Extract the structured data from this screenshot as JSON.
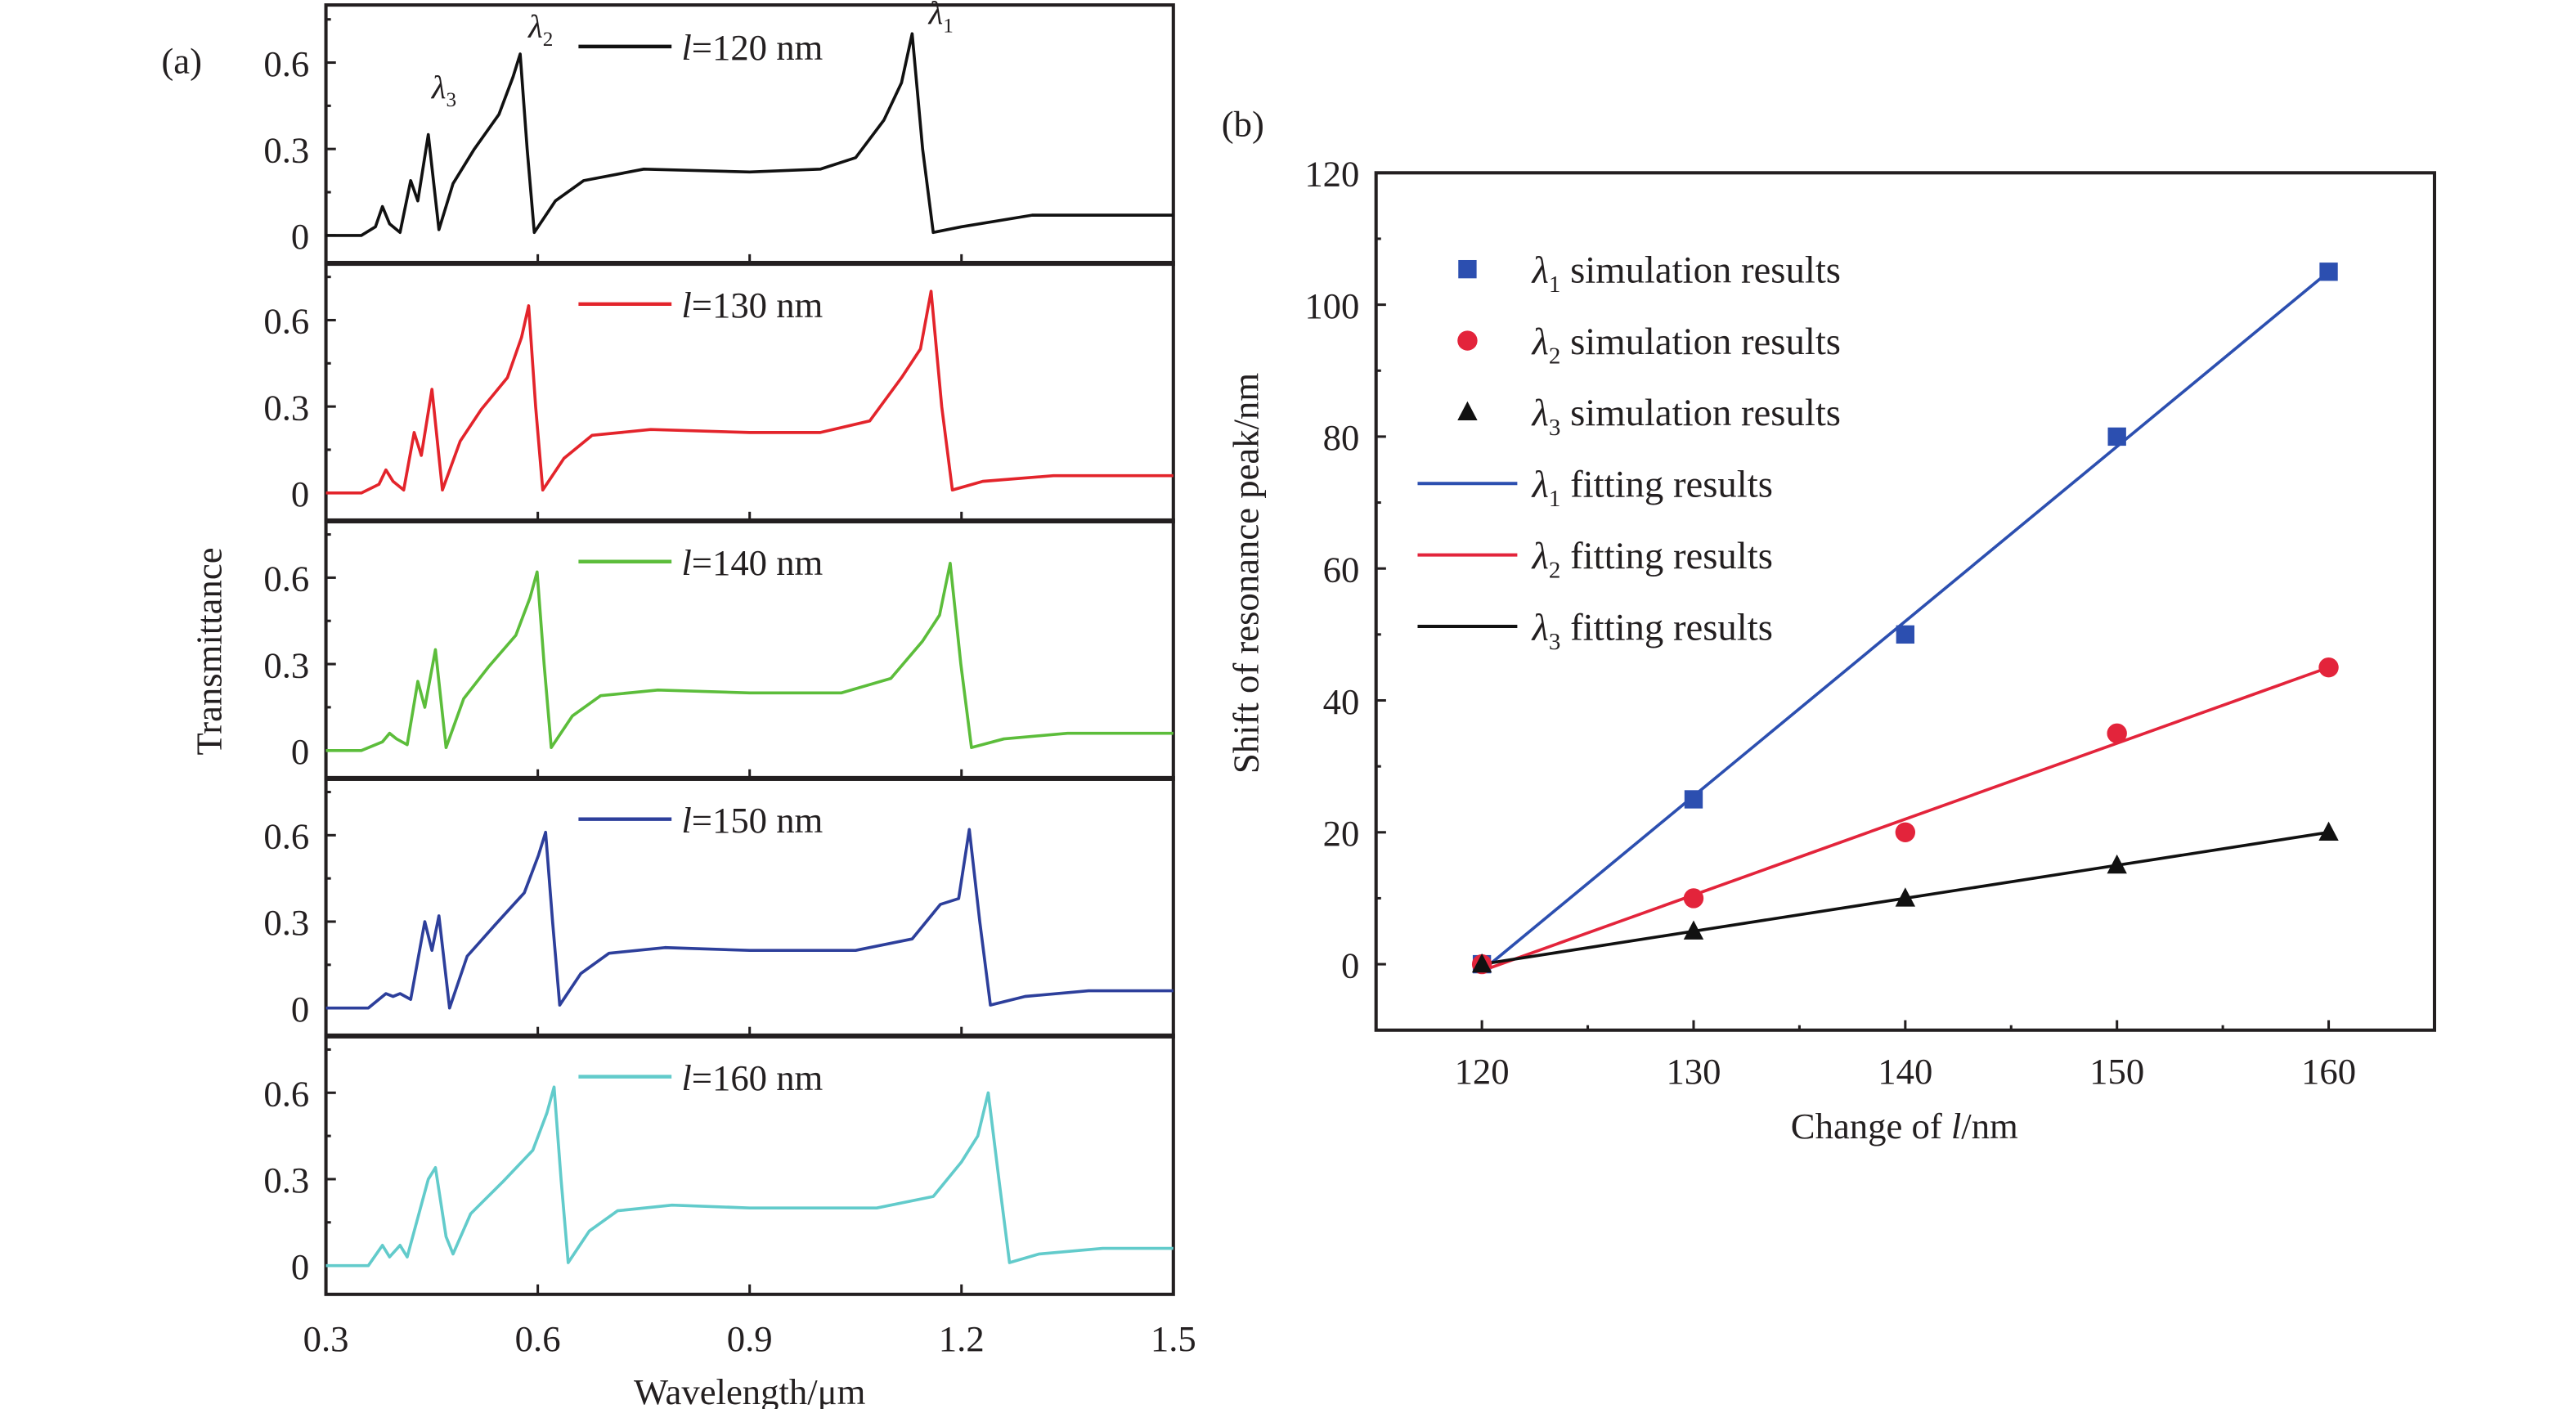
{
  "chart_data": [
    {
      "type": "line",
      "panel_label": "(a)",
      "xlabel": "Wavelength/μm",
      "ylabel": "Transmittance",
      "xlim": [
        0.3,
        1.5
      ],
      "ylim": [
        -0.1,
        0.8
      ],
      "x_ticks": [
        "0.3",
        "0.6",
        "0.9",
        "1.2",
        "1.5"
      ],
      "y_ticks": [
        "0",
        "0.3",
        "0.6"
      ],
      "grid": false,
      "legend_placement": "top-center",
      "annotations": [
        {
          "symbol": "λ",
          "subscript": "3",
          "at": [
            0.445,
            0.35
          ]
        },
        {
          "symbol": "λ",
          "subscript": "2",
          "at": [
            0.575,
            0.63
          ]
        },
        {
          "symbol": "λ",
          "subscript": "1",
          "at": [
            1.13,
            0.7
          ]
        }
      ],
      "series": [
        {
          "name": "l=120 nm",
          "color": "#111111",
          "points": [
            [
              0.3,
              0
            ],
            [
              0.35,
              0
            ],
            [
              0.37,
              0.03
            ],
            [
              0.38,
              0.1
            ],
            [
              0.39,
              0.04
            ],
            [
              0.405,
              0.01
            ],
            [
              0.42,
              0.19
            ],
            [
              0.43,
              0.12
            ],
            [
              0.445,
              0.35
            ],
            [
              0.46,
              0.02
            ],
            [
              0.48,
              0.18
            ],
            [
              0.51,
              0.3
            ],
            [
              0.545,
              0.42
            ],
            [
              0.565,
              0.55
            ],
            [
              0.575,
              0.63
            ],
            [
              0.585,
              0.3
            ],
            [
              0.595,
              0.01
            ],
            [
              0.625,
              0.12
            ],
            [
              0.665,
              0.19
            ],
            [
              0.75,
              0.23
            ],
            [
              0.9,
              0.22
            ],
            [
              1.0,
              0.23
            ],
            [
              1.05,
              0.27
            ],
            [
              1.09,
              0.4
            ],
            [
              1.115,
              0.53
            ],
            [
              1.13,
              0.7
            ],
            [
              1.145,
              0.3
            ],
            [
              1.16,
              0.01
            ],
            [
              1.2,
              0.03
            ],
            [
              1.3,
              0.07
            ],
            [
              1.5,
              0.07
            ]
          ]
        },
        {
          "name": "l=130 nm",
          "color": "#e3242b",
          "points": [
            [
              0.3,
              0
            ],
            [
              0.35,
              0
            ],
            [
              0.375,
              0.03
            ],
            [
              0.385,
              0.08
            ],
            [
              0.395,
              0.04
            ],
            [
              0.41,
              0.01
            ],
            [
              0.425,
              0.21
            ],
            [
              0.435,
              0.13
            ],
            [
              0.45,
              0.36
            ],
            [
              0.465,
              0.01
            ],
            [
              0.49,
              0.18
            ],
            [
              0.52,
              0.29
            ],
            [
              0.557,
              0.4
            ],
            [
              0.577,
              0.54
            ],
            [
              0.587,
              0.65
            ],
            [
              0.597,
              0.3
            ],
            [
              0.607,
              0.01
            ],
            [
              0.637,
              0.12
            ],
            [
              0.677,
              0.2
            ],
            [
              0.76,
              0.22
            ],
            [
              0.9,
              0.21
            ],
            [
              1.0,
              0.21
            ],
            [
              1.07,
              0.25
            ],
            [
              1.115,
              0.4
            ],
            [
              1.142,
              0.5
            ],
            [
              1.157,
              0.7
            ],
            [
              1.172,
              0.3
            ],
            [
              1.187,
              0.01
            ],
            [
              1.23,
              0.04
            ],
            [
              1.33,
              0.06
            ],
            [
              1.5,
              0.06
            ]
          ]
        },
        {
          "name": "l=140 nm",
          "color": "#5cbd3b",
          "points": [
            [
              0.3,
              0
            ],
            [
              0.35,
              0
            ],
            [
              0.38,
              0.03
            ],
            [
              0.39,
              0.06
            ],
            [
              0.4,
              0.04
            ],
            [
              0.415,
              0.02
            ],
            [
              0.43,
              0.24
            ],
            [
              0.44,
              0.15
            ],
            [
              0.455,
              0.35
            ],
            [
              0.47,
              0.01
            ],
            [
              0.495,
              0.18
            ],
            [
              0.53,
              0.29
            ],
            [
              0.569,
              0.4
            ],
            [
              0.589,
              0.53
            ],
            [
              0.599,
              0.62
            ],
            [
              0.609,
              0.3
            ],
            [
              0.619,
              0.01
            ],
            [
              0.649,
              0.12
            ],
            [
              0.689,
              0.19
            ],
            [
              0.77,
              0.21
            ],
            [
              0.9,
              0.2
            ],
            [
              1.03,
              0.2
            ],
            [
              1.1,
              0.25
            ],
            [
              1.145,
              0.38
            ],
            [
              1.169,
              0.47
            ],
            [
              1.184,
              0.65
            ],
            [
              1.199,
              0.3
            ],
            [
              1.214,
              0.01
            ],
            [
              1.26,
              0.04
            ],
            [
              1.35,
              0.06
            ],
            [
              1.5,
              0.06
            ]
          ]
        },
        {
          "name": "l=150 nm",
          "color": "#2d3f9b",
          "points": [
            [
              0.3,
              0
            ],
            [
              0.36,
              0
            ],
            [
              0.385,
              0.05
            ],
            [
              0.395,
              0.04
            ],
            [
              0.405,
              0.05
            ],
            [
              0.42,
              0.03
            ],
            [
              0.44,
              0.3
            ],
            [
              0.45,
              0.2
            ],
            [
              0.46,
              0.32
            ],
            [
              0.475,
              0.0
            ],
            [
              0.5,
              0.18
            ],
            [
              0.54,
              0.29
            ],
            [
              0.581,
              0.4
            ],
            [
              0.601,
              0.53
            ],
            [
              0.611,
              0.61
            ],
            [
              0.621,
              0.3
            ],
            [
              0.631,
              0.01
            ],
            [
              0.661,
              0.12
            ],
            [
              0.701,
              0.19
            ],
            [
              0.78,
              0.21
            ],
            [
              0.9,
              0.2
            ],
            [
              1.05,
              0.2
            ],
            [
              1.13,
              0.24
            ],
            [
              1.17,
              0.36
            ],
            [
              1.196,
              0.38
            ],
            [
              1.211,
              0.62
            ],
            [
              1.226,
              0.3
            ],
            [
              1.241,
              0.01
            ],
            [
              1.29,
              0.04
            ],
            [
              1.38,
              0.06
            ],
            [
              1.5,
              0.06
            ]
          ]
        },
        {
          "name": "l=160 nm",
          "color": "#62cbcb",
          "points": [
            [
              0.3,
              0
            ],
            [
              0.36,
              0
            ],
            [
              0.38,
              0.07
            ],
            [
              0.39,
              0.03
            ],
            [
              0.405,
              0.07
            ],
            [
              0.415,
              0.03
            ],
            [
              0.445,
              0.3
            ],
            [
              0.455,
              0.34
            ],
            [
              0.47,
              0.1
            ],
            [
              0.48,
              0.04
            ],
            [
              0.505,
              0.18
            ],
            [
              0.55,
              0.29
            ],
            [
              0.593,
              0.4
            ],
            [
              0.613,
              0.53
            ],
            [
              0.623,
              0.62
            ],
            [
              0.633,
              0.3
            ],
            [
              0.643,
              0.01
            ],
            [
              0.673,
              0.12
            ],
            [
              0.713,
              0.19
            ],
            [
              0.79,
              0.21
            ],
            [
              0.9,
              0.2
            ],
            [
              1.08,
              0.2
            ],
            [
              1.16,
              0.24
            ],
            [
              1.2,
              0.36
            ],
            [
              1.223,
              0.45
            ],
            [
              1.238,
              0.6
            ],
            [
              1.253,
              0.3
            ],
            [
              1.268,
              0.01
            ],
            [
              1.31,
              0.04
            ],
            [
              1.4,
              0.06
            ],
            [
              1.5,
              0.06
            ]
          ]
        }
      ]
    },
    {
      "type": "scatter",
      "panel_label": "(b)",
      "xlabel": "Change of l/nm",
      "ylabel": "Shift of resonance peak/nm",
      "xlim": [
        115,
        165
      ],
      "ylim": [
        -10,
        120
      ],
      "x_ticks": [
        "120",
        "130",
        "140",
        "150",
        "160"
      ],
      "y_ticks": [
        "0",
        "20",
        "40",
        "60",
        "80",
        "100",
        "120"
      ],
      "grid": false,
      "legend_placement": "top-left",
      "x": [
        120,
        130,
        140,
        150,
        160
      ],
      "series": [
        {
          "name": {
            "symbol": "λ",
            "subscript": "1",
            "text": "simulation results"
          },
          "marker": "square",
          "color": "#2c4fb0",
          "values": [
            0,
            25,
            50,
            80,
            105
          ]
        },
        {
          "name": {
            "symbol": "λ",
            "subscript": "2",
            "text": "simulation results"
          },
          "marker": "circle",
          "color": "#e3243b",
          "values": [
            0,
            10,
            20,
            35,
            45
          ]
        },
        {
          "name": {
            "symbol": "λ",
            "subscript": "3",
            "text": "simulation results"
          },
          "marker": "triangle",
          "color": "#111111",
          "values": [
            0,
            5,
            10,
            15,
            20
          ]
        }
      ],
      "fits": [
        {
          "name": {
            "symbol": "λ",
            "subscript": "1",
            "text": "fitting results"
          },
          "color": "#2c4fb0",
          "x": [
            120,
            160
          ],
          "y": [
            -1,
            105
          ]
        },
        {
          "name": {
            "symbol": "λ",
            "subscript": "2",
            "text": "fitting results"
          },
          "color": "#e3243b",
          "x": [
            120,
            160
          ],
          "y": [
            -1,
            45
          ]
        },
        {
          "name": {
            "symbol": "λ",
            "subscript": "3",
            "text": "fitting results"
          },
          "color": "#111111",
          "x": [
            120,
            160
          ],
          "y": [
            0,
            20
          ]
        }
      ]
    }
  ]
}
